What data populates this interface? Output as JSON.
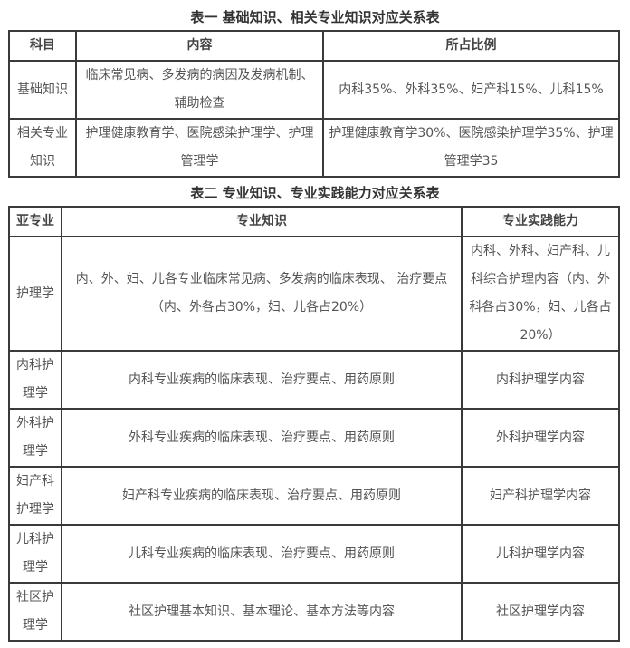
{
  "table1": {
    "title": "表一 基础知识、相关专业知识对应关系表",
    "headers": [
      "科目",
      "内容",
      "所占比例"
    ],
    "rows": [
      [
        "基础知识",
        "临床常见病、多发病的病因及发病机制、辅助检查",
        "内科35%、外科35%、妇产科15%、儿科15%"
      ],
      [
        "相关专业知识",
        "护理健康教育学、医院感染护理学、护理管理学",
        "护理健康教育学30%、医院感染护理学35%、护理管理学35"
      ]
    ]
  },
  "table2": {
    "title": "表二 专业知识、专业实践能力对应关系表",
    "headers": [
      "亚专业",
      "专业知识",
      "专业实践能力"
    ],
    "rows": [
      [
        "护理学",
        "内、外、妇、儿各专业临床常见病、多发病的临床表现、 治疗要点（内、外各占30%，妇、儿各占20%）",
        "内科、外科、妇产科、儿科综合护理内容（内、外科各占30%，妇、儿各占20%）"
      ],
      [
        "内科护理学",
        "内科专业疾病的临床表现、治疗要点、用药原则",
        "内科护理学内容"
      ],
      [
        "外科护理学",
        "外科专业疾病的临床表现、治疗要点、用药原则",
        "外科护理学内容"
      ],
      [
        "妇产科护理学",
        "妇产科专业疾病的临床表现、治疗要点、用药原则",
        "妇产科护理学内容"
      ],
      [
        "儿科护理学",
        "儿科专业疾病的临床表现、治疗要点、用药原则",
        "儿科护理学内容"
      ],
      [
        "社区护理学",
        "社区护理基本知识、基本理论、基本方法等内容",
        "社区护理学内容"
      ]
    ]
  }
}
